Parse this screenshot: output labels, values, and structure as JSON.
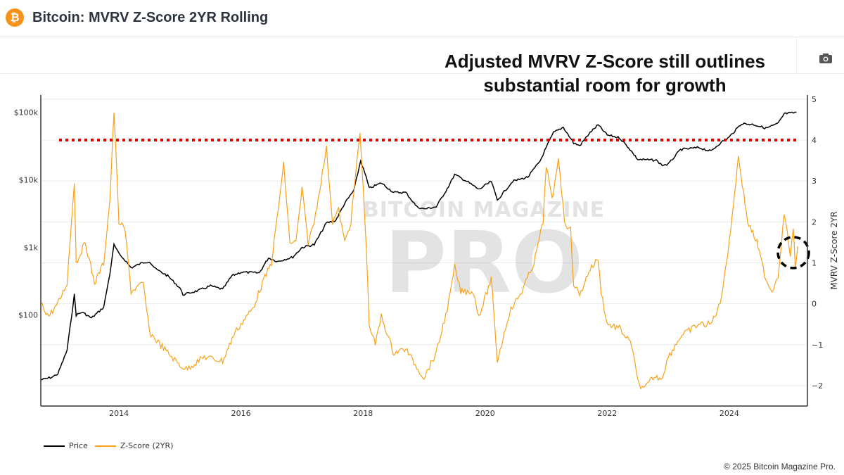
{
  "header": {
    "title": "Bitcoin: MVRV Z-Score 2YR Rolling",
    "icon": "bitcoin-icon",
    "brand_color": "#f7931a"
  },
  "toolbar": {
    "camera_icon": "camera-icon"
  },
  "annotation": {
    "line1": "Adjusted MVRV Z-Score still outlines",
    "line2": "substantial room for growth"
  },
  "footer": {
    "copyright": "© 2025 Bitcoin Magazine Pro."
  },
  "watermark": {
    "line1": "BITCOIN MAGAZINE",
    "line2": "PRO"
  },
  "chart_data": {
    "type": "line",
    "title": "",
    "xlabel": "",
    "ylabel_left": "",
    "ylabel_right": "MVRV Z-Score 2YR",
    "x_ticks": [
      "2014",
      "2016",
      "2018",
      "2020",
      "2022",
      "2024"
    ],
    "xlim": [
      2012.72,
      2025.28
    ],
    "y_left": {
      "scale": "log",
      "range": [
        4.5,
        180000
      ],
      "ticks": [
        {
          "v": 100,
          "label": "$100"
        },
        {
          "v": 1000,
          "label": "$1k"
        },
        {
          "v": 10000,
          "label": "$10k"
        },
        {
          "v": 100000,
          "label": "$100k"
        }
      ]
    },
    "y_right": {
      "scale": "linear",
      "range": [
        -2.5,
        5.1
      ],
      "ticks": [
        {
          "v": 5,
          "label": "5"
        },
        {
          "v": 4,
          "label": "4"
        },
        {
          "v": 3,
          "label": "3"
        },
        {
          "v": 2,
          "label": "2"
        },
        {
          "v": 1,
          "label": "1"
        },
        {
          "v": 0,
          "label": "0"
        },
        {
          "v": -1,
          "label": "−1"
        },
        {
          "v": -2,
          "label": "−2"
        }
      ]
    },
    "grid": true,
    "legend_position": "bottom-left",
    "threshold": {
      "axis": "right",
      "value": 4,
      "color": "#e00000",
      "style": "dotted"
    },
    "highlight_circle": {
      "x": 2025.05,
      "z": 1.25,
      "color": "#000000",
      "style": "dashed"
    },
    "series": [
      {
        "name": "Price",
        "axis": "left",
        "color": "#000000",
        "points": [
          [
            2012.72,
            11
          ],
          [
            2012.9,
            12
          ],
          [
            2013.0,
            13.5
          ],
          [
            2013.15,
            30
          ],
          [
            2013.27,
            200
          ],
          [
            2013.3,
            100
          ],
          [
            2013.4,
            110
          ],
          [
            2013.55,
            90
          ],
          [
            2013.75,
            130
          ],
          [
            2013.85,
            400
          ],
          [
            2013.92,
            1100
          ],
          [
            2014.0,
            800
          ],
          [
            2014.1,
            650
          ],
          [
            2014.2,
            500
          ],
          [
            2014.4,
            600
          ],
          [
            2014.5,
            620
          ],
          [
            2014.6,
            480
          ],
          [
            2014.8,
            380
          ],
          [
            2015.0,
            250
          ],
          [
            2015.05,
            200
          ],
          [
            2015.3,
            230
          ],
          [
            2015.5,
            270
          ],
          [
            2015.7,
            240
          ],
          [
            2015.85,
            380
          ],
          [
            2016.0,
            430
          ],
          [
            2016.3,
            420
          ],
          [
            2016.45,
            700
          ],
          [
            2016.6,
            620
          ],
          [
            2016.85,
            720
          ],
          [
            2017.0,
            1000
          ],
          [
            2017.2,
            1100
          ],
          [
            2017.4,
            2300
          ],
          [
            2017.55,
            2500
          ],
          [
            2017.7,
            4500
          ],
          [
            2017.85,
            7000
          ],
          [
            2017.96,
            19000
          ],
          [
            2018.05,
            11000
          ],
          [
            2018.1,
            7500
          ],
          [
            2018.3,
            9000
          ],
          [
            2018.5,
            6500
          ],
          [
            2018.7,
            6500
          ],
          [
            2018.88,
            4000
          ],
          [
            2019.0,
            3700
          ],
          [
            2019.2,
            4000
          ],
          [
            2019.4,
            8000
          ],
          [
            2019.5,
            12000
          ],
          [
            2019.7,
            9500
          ],
          [
            2019.9,
            7200
          ],
          [
            2020.1,
            9500
          ],
          [
            2020.2,
            5000
          ],
          [
            2020.45,
            9500
          ],
          [
            2020.7,
            11000
          ],
          [
            2020.9,
            19000
          ],
          [
            2021.0,
            30000
          ],
          [
            2021.12,
            50000
          ],
          [
            2021.28,
            60000
          ],
          [
            2021.45,
            35000
          ],
          [
            2021.55,
            32000
          ],
          [
            2021.7,
            48000
          ],
          [
            2021.85,
            65000
          ],
          [
            2022.0,
            46000
          ],
          [
            2022.2,
            42000
          ],
          [
            2022.35,
            30000
          ],
          [
            2022.5,
            20000
          ],
          [
            2022.8,
            19500
          ],
          [
            2022.9,
            16500
          ],
          [
            2023.0,
            17000
          ],
          [
            2023.2,
            28000
          ],
          [
            2023.5,
            30000
          ],
          [
            2023.7,
            26500
          ],
          [
            2023.85,
            35000
          ],
          [
            2024.0,
            43000
          ],
          [
            2024.2,
            68000
          ],
          [
            2024.4,
            66000
          ],
          [
            2024.6,
            58000
          ],
          [
            2024.8,
            68000
          ],
          [
            2024.9,
            95000
          ],
          [
            2025.05,
            98000
          ],
          [
            2025.1,
            100000
          ]
        ]
      },
      {
        "name": "Z-Score (2YR)",
        "axis": "right",
        "color": "#f7a11a",
        "points": [
          [
            2012.72,
            0
          ],
          [
            2012.85,
            -0.3
          ],
          [
            2013.0,
            0
          ],
          [
            2013.15,
            0.5
          ],
          [
            2013.27,
            3.0
          ],
          [
            2013.3,
            1.0
          ],
          [
            2013.45,
            1.5
          ],
          [
            2013.6,
            0.5
          ],
          [
            2013.75,
            1.0
          ],
          [
            2013.85,
            2.5
          ],
          [
            2013.92,
            4.7
          ],
          [
            2014.0,
            2.0
          ],
          [
            2014.1,
            1.8
          ],
          [
            2014.2,
            0.3
          ],
          [
            2014.4,
            0.5
          ],
          [
            2014.5,
            -0.7
          ],
          [
            2014.8,
            -1.2
          ],
          [
            2015.0,
            -1.5
          ],
          [
            2015.1,
            -1.6
          ],
          [
            2015.4,
            -1.3
          ],
          [
            2015.7,
            -1.4
          ],
          [
            2015.9,
            -0.7
          ],
          [
            2016.0,
            -0.5
          ],
          [
            2016.2,
            -0.1
          ],
          [
            2016.35,
            0.5
          ],
          [
            2016.5,
            1.0
          ],
          [
            2016.7,
            3.4
          ],
          [
            2016.8,
            1.5
          ],
          [
            2016.9,
            1.5
          ],
          [
            2017.0,
            2.8
          ],
          [
            2017.1,
            1.5
          ],
          [
            2017.2,
            2.0
          ],
          [
            2017.4,
            3.8
          ],
          [
            2017.5,
            2.0
          ],
          [
            2017.6,
            2.3
          ],
          [
            2017.7,
            1.5
          ],
          [
            2017.8,
            2.0
          ],
          [
            2017.95,
            4.2
          ],
          [
            2018.05,
            1.5
          ],
          [
            2018.1,
            -0.5
          ],
          [
            2018.2,
            -1.0
          ],
          [
            2018.3,
            -0.3
          ],
          [
            2018.5,
            -1.2
          ],
          [
            2018.7,
            -1.1
          ],
          [
            2018.9,
            -1.6
          ],
          [
            2019.0,
            -1.8
          ],
          [
            2019.2,
            -1.2
          ],
          [
            2019.4,
            0.0
          ],
          [
            2019.5,
            0.9
          ],
          [
            2019.6,
            0.3
          ],
          [
            2019.8,
            0.3
          ],
          [
            2019.9,
            -0.3
          ],
          [
            2020.1,
            0.6
          ],
          [
            2020.2,
            -1.4
          ],
          [
            2020.4,
            -0.2
          ],
          [
            2020.6,
            0.3
          ],
          [
            2020.8,
            1.0
          ],
          [
            2020.95,
            2.0
          ],
          [
            2021.0,
            3.4
          ],
          [
            2021.1,
            2.5
          ],
          [
            2021.2,
            3.6
          ],
          [
            2021.3,
            2.0
          ],
          [
            2021.4,
            1.8
          ],
          [
            2021.45,
            0.5
          ],
          [
            2021.55,
            0.2
          ],
          [
            2021.7,
            0.8
          ],
          [
            2021.85,
            1.1
          ],
          [
            2021.9,
            0.3
          ],
          [
            2022.0,
            -0.5
          ],
          [
            2022.2,
            -0.6
          ],
          [
            2022.4,
            -1.0
          ],
          [
            2022.5,
            -1.9
          ],
          [
            2022.6,
            -2.1
          ],
          [
            2022.75,
            -1.8
          ],
          [
            2022.9,
            -1.8
          ],
          [
            2023.0,
            -1.3
          ],
          [
            2023.2,
            -0.8
          ],
          [
            2023.5,
            -0.5
          ],
          [
            2023.7,
            -0.5
          ],
          [
            2023.85,
            0.0
          ],
          [
            2024.0,
            1.5
          ],
          [
            2024.15,
            3.6
          ],
          [
            2024.3,
            2.0
          ],
          [
            2024.45,
            1.5
          ],
          [
            2024.6,
            0.6
          ],
          [
            2024.7,
            0.3
          ],
          [
            2024.8,
            0.7
          ],
          [
            2024.9,
            2.2
          ],
          [
            2025.0,
            1.2
          ],
          [
            2025.05,
            1.8
          ],
          [
            2025.08,
            0.9
          ],
          [
            2025.12,
            1.4
          ]
        ]
      }
    ]
  }
}
